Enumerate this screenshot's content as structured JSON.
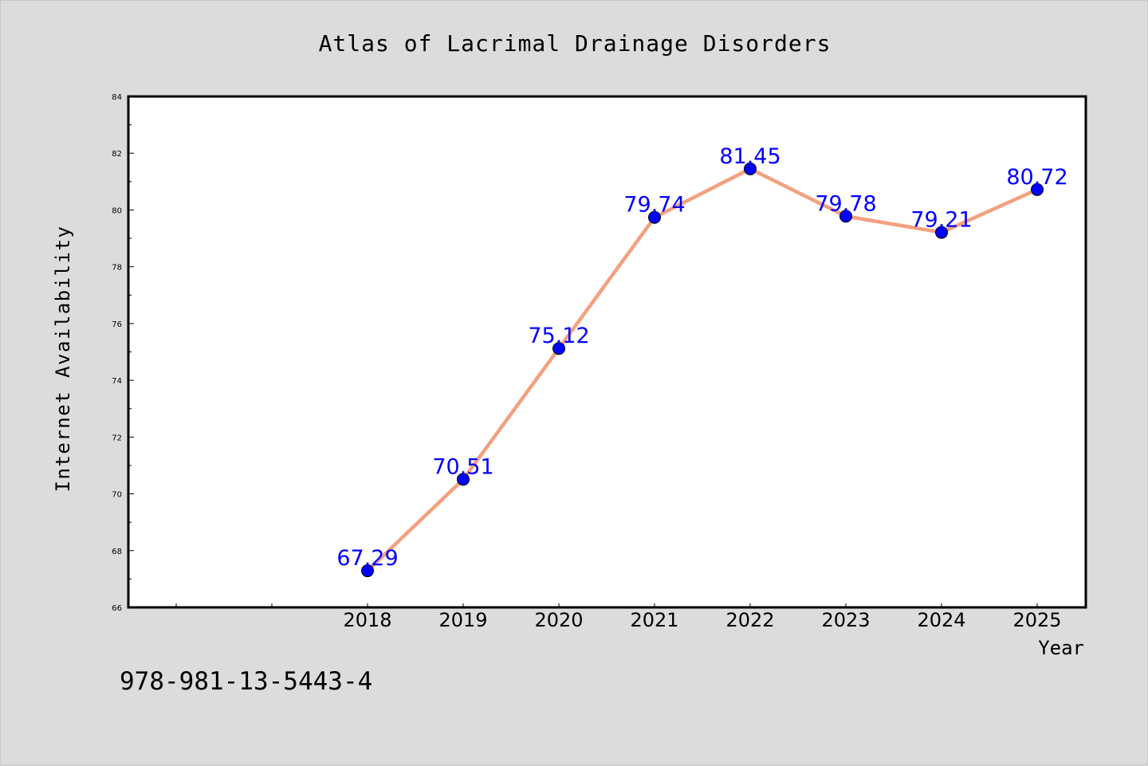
{
  "footer": {
    "isbn": "978-981-13-5443-4"
  },
  "chart_data": {
    "type": "line",
    "title": "Atlas of Lacrimal Drainage Disorders",
    "xlabel": "Year",
    "ylabel": "Internet Availability",
    "categories": [
      "2018",
      "2019",
      "2020",
      "2021",
      "2022",
      "2023",
      "2024",
      "2025"
    ],
    "values": [
      67.29,
      70.51,
      75.12,
      79.74,
      81.45,
      79.78,
      79.21,
      80.72
    ],
    "value_labels": [
      "67.29",
      "70.51",
      "75.12",
      "79.74",
      "81.45",
      "79.78",
      "79.21",
      "80.72"
    ],
    "ylim": [
      66,
      84
    ],
    "yticks": [
      "66",
      "68",
      "70",
      "72",
      "74",
      "76",
      "78",
      "80",
      "82",
      "84"
    ],
    "grid": false,
    "legend": "none",
    "colors": {
      "line": "#f4a07f",
      "marker": "#0000ff",
      "label": "#0000ff",
      "background": "#dcdcdc",
      "plot_bg": "#ffffff"
    }
  }
}
